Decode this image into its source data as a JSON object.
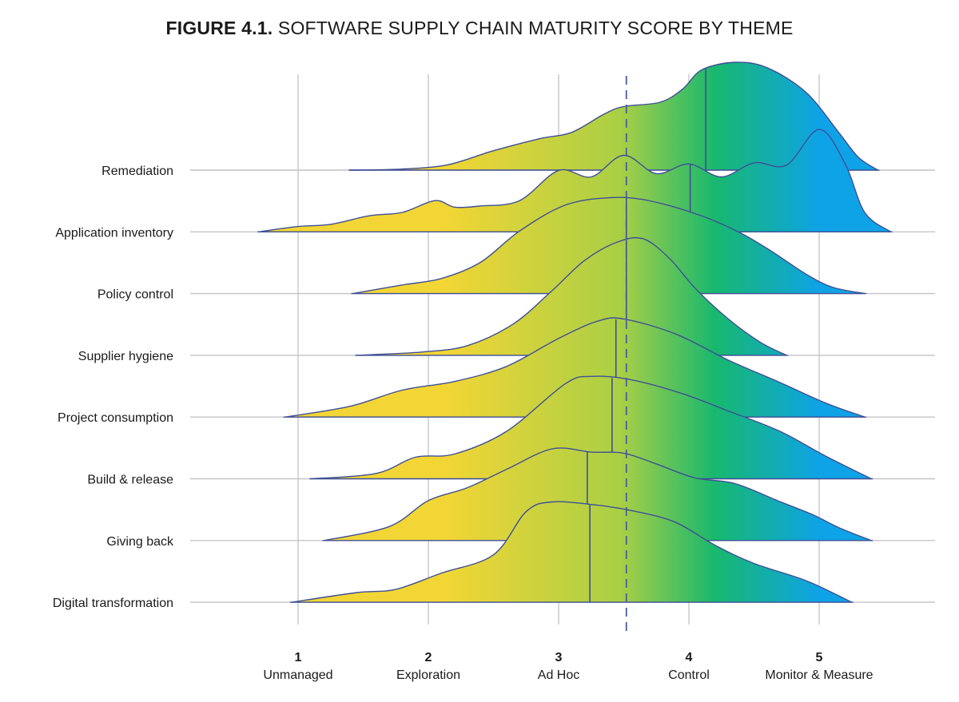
{
  "title": {
    "prefix": "FIGURE 4.1.",
    "text": "SOFTWARE SUPPLY CHAIN MATURITY SCORE BY THEME"
  },
  "colors": {
    "low": "#f2d635",
    "mid_low": "#a9cf45",
    "mid": "#18b86e",
    "high": "#0ea3e6",
    "outline": "#3f4f96",
    "grid": "#cfcfcf",
    "baseline": "#c4c4c4",
    "reference": "#4a5a9e"
  },
  "chart_data": {
    "type": "ridgeline",
    "title": "SOFTWARE SUPPLY CHAIN MATURITY SCORE BY THEME",
    "x_axis": {
      "range": [
        0.3,
        5.9
      ],
      "ticks": [
        {
          "value": 1,
          "label": "Unmanaged"
        },
        {
          "value": 2,
          "label": "Exploration"
        },
        {
          "value": 3,
          "label": "Ad Hoc"
        },
        {
          "value": 4,
          "label": "Control"
        },
        {
          "value": 5,
          "label": "Monitor & Measure"
        }
      ]
    },
    "grid": true,
    "reference_line": {
      "style": "dashed",
      "value": 3.52
    },
    "series": [
      {
        "name": "Remediation",
        "median": 4.13,
        "curve": [
          [
            1.4,
            0
          ],
          [
            1.8,
            0.01
          ],
          [
            2.15,
            0.05
          ],
          [
            2.5,
            0.18
          ],
          [
            2.85,
            0.29
          ],
          [
            3.1,
            0.35
          ],
          [
            3.35,
            0.52
          ],
          [
            3.5,
            0.59
          ],
          [
            3.78,
            0.63
          ],
          [
            3.95,
            0.75
          ],
          [
            4.1,
            0.93
          ],
          [
            4.35,
            1.0
          ],
          [
            4.6,
            0.95
          ],
          [
            4.9,
            0.72
          ],
          [
            5.15,
            0.35
          ],
          [
            5.3,
            0.12
          ],
          [
            5.45,
            0
          ]
        ]
      },
      {
        "name": "Application inventory",
        "median": 4.01,
        "curve": [
          [
            0.7,
            0
          ],
          [
            1.0,
            0.05
          ],
          [
            1.25,
            0.07
          ],
          [
            1.55,
            0.15
          ],
          [
            1.8,
            0.18
          ],
          [
            2.05,
            0.29
          ],
          [
            2.2,
            0.23
          ],
          [
            2.4,
            0.24
          ],
          [
            2.7,
            0.29
          ],
          [
            3.0,
            0.57
          ],
          [
            3.25,
            0.51
          ],
          [
            3.5,
            0.71
          ],
          [
            3.75,
            0.54
          ],
          [
            4.0,
            0.63
          ],
          [
            4.25,
            0.51
          ],
          [
            4.5,
            0.64
          ],
          [
            4.75,
            0.62
          ],
          [
            5.0,
            0.95
          ],
          [
            5.2,
            0.63
          ],
          [
            5.35,
            0.18
          ],
          [
            5.55,
            0
          ]
        ]
      },
      {
        "name": "Policy control",
        "median": 3.52,
        "curve": [
          [
            1.42,
            0
          ],
          [
            1.8,
            0.08
          ],
          [
            2.1,
            0.14
          ],
          [
            2.4,
            0.29
          ],
          [
            2.7,
            0.58
          ],
          [
            3.05,
            0.82
          ],
          [
            3.4,
            0.89
          ],
          [
            3.7,
            0.86
          ],
          [
            4.1,
            0.72
          ],
          [
            4.4,
            0.56
          ],
          [
            4.65,
            0.38
          ],
          [
            4.9,
            0.18
          ],
          [
            5.1,
            0.06
          ],
          [
            5.35,
            0
          ]
        ]
      },
      {
        "name": "Supplier hygiene",
        "median": 3.52,
        "curve": [
          [
            1.45,
            0
          ],
          [
            1.95,
            0.03
          ],
          [
            2.3,
            0.09
          ],
          [
            2.65,
            0.29
          ],
          [
            2.95,
            0.6
          ],
          [
            3.2,
            0.88
          ],
          [
            3.45,
            1.05
          ],
          [
            3.65,
            1.08
          ],
          [
            3.85,
            0.9
          ],
          [
            4.05,
            0.62
          ],
          [
            4.3,
            0.34
          ],
          [
            4.55,
            0.12
          ],
          [
            4.75,
            0
          ]
        ]
      },
      {
        "name": "Project consumption",
        "median": 3.44,
        "curve": [
          [
            0.9,
            0
          ],
          [
            1.4,
            0.1
          ],
          [
            1.8,
            0.25
          ],
          [
            2.2,
            0.33
          ],
          [
            2.6,
            0.47
          ],
          [
            3.0,
            0.73
          ],
          [
            3.3,
            0.89
          ],
          [
            3.5,
            0.91
          ],
          [
            3.9,
            0.77
          ],
          [
            4.3,
            0.53
          ],
          [
            4.7,
            0.32
          ],
          [
            5.05,
            0.13
          ],
          [
            5.35,
            0
          ]
        ]
      },
      {
        "name": "Build & release",
        "median": 3.41,
        "curve": [
          [
            1.1,
            0
          ],
          [
            1.6,
            0.05
          ],
          [
            1.9,
            0.2
          ],
          [
            2.2,
            0.23
          ],
          [
            2.6,
            0.44
          ],
          [
            3.05,
            0.88
          ],
          [
            3.25,
            0.95
          ],
          [
            3.55,
            0.92
          ],
          [
            3.95,
            0.79
          ],
          [
            4.3,
            0.63
          ],
          [
            4.7,
            0.44
          ],
          [
            5.05,
            0.21
          ],
          [
            5.4,
            0
          ]
        ]
      },
      {
        "name": "Giving back",
        "median": 3.22,
        "curve": [
          [
            1.2,
            0
          ],
          [
            1.7,
            0.13
          ],
          [
            2.0,
            0.37
          ],
          [
            2.3,
            0.49
          ],
          [
            2.6,
            0.66
          ],
          [
            2.95,
            0.85
          ],
          [
            3.25,
            0.82
          ],
          [
            3.5,
            0.81
          ],
          [
            3.75,
            0.71
          ],
          [
            4.05,
            0.58
          ],
          [
            4.35,
            0.53
          ],
          [
            4.7,
            0.36
          ],
          [
            4.95,
            0.24
          ],
          [
            5.15,
            0.12
          ],
          [
            5.4,
            0
          ]
        ]
      },
      {
        "name": "Digital transformation",
        "median": 3.24,
        "curve": [
          [
            0.95,
            0
          ],
          [
            1.45,
            0.09
          ],
          [
            1.75,
            0.12
          ],
          [
            2.1,
            0.27
          ],
          [
            2.5,
            0.44
          ],
          [
            2.75,
            0.84
          ],
          [
            2.95,
            0.93
          ],
          [
            3.3,
            0.9
          ],
          [
            3.6,
            0.84
          ],
          [
            3.9,
            0.74
          ],
          [
            4.2,
            0.53
          ],
          [
            4.5,
            0.36
          ],
          [
            4.9,
            0.2
          ],
          [
            5.25,
            0
          ]
        ]
      }
    ]
  }
}
